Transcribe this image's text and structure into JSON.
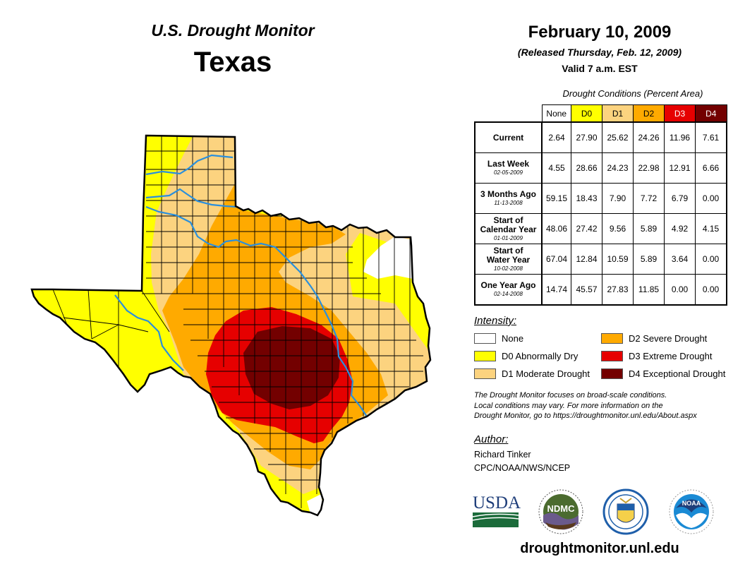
{
  "header": {
    "monitor_title": "U.S. Drought Monitor",
    "state": "Texas",
    "date": "February 10, 2009",
    "released": "(Released Thursday, Feb. 12, 2009)",
    "valid": "Valid 7 a.m. EST"
  },
  "table": {
    "caption": "Drought Conditions (Percent Area)",
    "columns": [
      {
        "label": "None",
        "color": "#ffffff",
        "text_color": "#000000"
      },
      {
        "label": "D0",
        "color": "#ffff00",
        "text_color": "#000000"
      },
      {
        "label": "D1",
        "color": "#fcd37f",
        "text_color": "#000000"
      },
      {
        "label": "D2",
        "color": "#ffaa00",
        "text_color": "#000000"
      },
      {
        "label": "D3",
        "color": "#e60000",
        "text_color": "#ffffff"
      },
      {
        "label": "D4",
        "color": "#730000",
        "text_color": "#ffffff"
      }
    ],
    "rows": [
      {
        "label": "Current",
        "label2": "",
        "date": "",
        "values": [
          "2.64",
          "27.90",
          "25.62",
          "24.26",
          "11.96",
          "7.61"
        ]
      },
      {
        "label": "Last Week",
        "label2": "",
        "date": "02-05-2009",
        "values": [
          "4.55",
          "28.66",
          "24.23",
          "22.98",
          "12.91",
          "6.66"
        ]
      },
      {
        "label": "3 Months Ago",
        "label2": "",
        "date": "11-13-2008",
        "values": [
          "59.15",
          "18.43",
          "7.90",
          "7.72",
          "6.79",
          "0.00"
        ]
      },
      {
        "label": "Start of",
        "label2": "Calendar Year",
        "date": "01-01-2009",
        "values": [
          "48.06",
          "27.42",
          "9.56",
          "5.89",
          "4.92",
          "4.15"
        ]
      },
      {
        "label": "Start of",
        "label2": "Water Year",
        "date": "10-02-2008",
        "values": [
          "67.04",
          "12.84",
          "10.59",
          "5.89",
          "3.64",
          "0.00"
        ]
      },
      {
        "label": "One Year Ago",
        "label2": "",
        "date": "02-14-2008",
        "values": [
          "14.74",
          "45.57",
          "27.83",
          "11.85",
          "0.00",
          "0.00"
        ]
      }
    ]
  },
  "legend": {
    "title": "Intensity:",
    "items": [
      {
        "label": "None",
        "color": "#ffffff"
      },
      {
        "label": "D0 Abnormally Dry",
        "color": "#ffff00"
      },
      {
        "label": "D1 Moderate Drought",
        "color": "#fcd37f"
      },
      {
        "label": "D2 Severe Drought",
        "color": "#ffaa00"
      },
      {
        "label": "D3 Extreme Drought",
        "color": "#e60000"
      },
      {
        "label": "D4 Exceptional Drought",
        "color": "#730000"
      }
    ]
  },
  "note": {
    "line1": "The Drought Monitor focuses on broad-scale conditions.",
    "line2": "Local conditions may vary. For more information on the",
    "line3": "Drought Monitor, go to https://droughtmonitor.unl.edu/About.aspx"
  },
  "author": {
    "title": "Author:",
    "name": "Richard Tinker",
    "org": "CPC/NOAA/NWS/NCEP"
  },
  "logos": {
    "usda": "USDA",
    "ndmc": "NDMC",
    "commerce": "department-of-commerce-seal",
    "noaa": "NOAA"
  },
  "website": "droughtmonitor.unl.edu",
  "map_colors": {
    "none": "#ffffff",
    "d0": "#ffff00",
    "d1": "#fcd37f",
    "d2": "#ffaa00",
    "d3": "#e60000",
    "d4": "#730000",
    "river": "#2a8fdc"
  }
}
